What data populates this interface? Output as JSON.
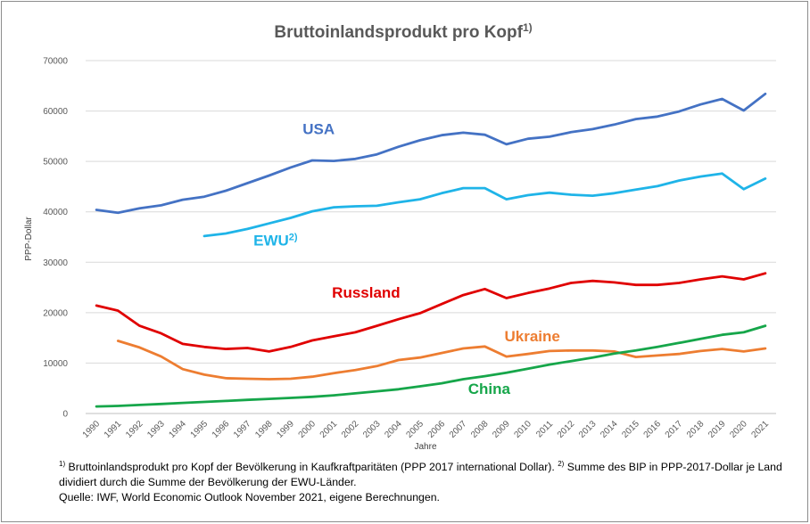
{
  "chart_data": {
    "type": "line",
    "title": "Bruttoinlandsprodukt pro Kopf",
    "title_superscript": "1)",
    "xlabel": "Jahre",
    "ylabel": "PPP-Dollar",
    "ylim": [
      0,
      70000
    ],
    "yticks": [
      "0",
      "10000",
      "20000",
      "30000",
      "40000",
      "50000",
      "60000",
      "70000"
    ],
    "ytick_values": [
      0,
      10000,
      20000,
      30000,
      40000,
      50000,
      60000,
      70000
    ],
    "categories": [
      "1990",
      "1991",
      "1992",
      "1993",
      "1994",
      "1995",
      "1996",
      "1997",
      "1998",
      "1999",
      "2000",
      "2001",
      "2002",
      "2003",
      "2004",
      "2005",
      "2006",
      "2007",
      "2008",
      "2009",
      "2010",
      "2011",
      "2012",
      "2013",
      "2014",
      "2015",
      "2016",
      "2017",
      "2018",
      "2019",
      "2020",
      "2021"
    ],
    "grid": "horizontal",
    "legend": "inline labels",
    "series": [
      {
        "name": "USA",
        "superscript": "",
        "color": "#4472C4",
        "values": [
          40400,
          39800,
          40700,
          41300,
          42400,
          43000,
          44200,
          45700,
          47200,
          48800,
          50200,
          50100,
          50500,
          51400,
          52900,
          54200,
          55200,
          55700,
          55300,
          53400,
          54500,
          54900,
          55800,
          56400,
          57300,
          58400,
          58900,
          59900,
          61300,
          62400,
          60100,
          63400
        ]
      },
      {
        "name": "EWU",
        "superscript": "2)",
        "color": "#1FB4E8",
        "values": [
          null,
          null,
          null,
          null,
          null,
          35200,
          35700,
          36600,
          37700,
          38800,
          40100,
          40900,
          41100,
          41200,
          41900,
          42500,
          43700,
          44700,
          44700,
          42500,
          43300,
          43800,
          43400,
          43200,
          43700,
          44400,
          45100,
          46200,
          47000,
          47600,
          44500,
          46600
        ]
      },
      {
        "name": "Russland",
        "superscript": "",
        "color": "#E00000",
        "values": [
          21400,
          20400,
          17400,
          15900,
          13800,
          13200,
          12800,
          13000,
          12300,
          13200,
          14500,
          15300,
          16100,
          17400,
          18700,
          19900,
          21700,
          23500,
          24700,
          22900,
          23900,
          24800,
          25900,
          26300,
          26000,
          25500,
          25500,
          25900,
          26600,
          27200,
          26600,
          27800
        ]
      },
      {
        "name": "Ukraine",
        "superscript": "",
        "color": "#ED7D31",
        "values": [
          null,
          14400,
          13100,
          11300,
          8800,
          7700,
          7000,
          6900,
          6800,
          6900,
          7300,
          8000,
          8600,
          9400,
          10600,
          11100,
          12000,
          12900,
          13300,
          11300,
          11800,
          12400,
          12500,
          12500,
          12300,
          11200,
          11500,
          11800,
          12400,
          12800,
          12300,
          12900
        ]
      },
      {
        "name": "China",
        "superscript": "",
        "color": "#16A64A",
        "values": [
          1400,
          1500,
          1700,
          1900,
          2100,
          2300,
          2500,
          2700,
          2900,
          3100,
          3300,
          3600,
          4000,
          4400,
          4800,
          5400,
          6000,
          6800,
          7400,
          8100,
          8900,
          9700,
          10400,
          11100,
          11900,
          12500,
          13200,
          14000,
          14800,
          15600,
          16100,
          17400
        ]
      }
    ]
  },
  "footnotes": {
    "sup1": "1)",
    "text1": " Bruttoinlandsprodukt pro Kopf der Bevölkerung in Kaufkraftparitäten (PPP 2017 international Dollar). ",
    "sup2": "2)",
    "text2": " Summe des BIP in PPP-2017-Dollar je Land dividiert durch die Summe der Bevölkerung der EWU-Länder.",
    "source": "Quelle: IWF, World Economic Outlook November 2021, eigene Berechnungen."
  }
}
